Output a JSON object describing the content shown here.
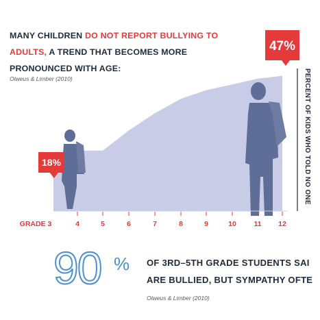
{
  "headline": {
    "part1": "MANY CHILDREN ",
    "highlight": "DO NOT REPORT BULLYING TO ADULTS,",
    "part2": " A TREND THAT BECOMES MORE PRONOUNCED WITH AGE:"
  },
  "citation_top": "Olweus & Limber  (2010)",
  "colors": {
    "red": "#e53a3a",
    "area": "#c9cce6",
    "silhouette": "#5f6e97",
    "navy": "#1f2a3a",
    "blue": "#4a8fd0"
  },
  "chart_data": {
    "type": "area",
    "title": "",
    "xlabel": "",
    "ylabel": "PERCENT OF KIDS WHO TOLD NO ONE",
    "x": [
      "GRADE 3",
      "4",
      "5",
      "6",
      "7",
      "8",
      "9",
      "10",
      "11",
      "12"
    ],
    "values": [
      18,
      21,
      21,
      28,
      34,
      39,
      42,
      44,
      46,
      47
    ],
    "ylim": [
      0,
      50
    ],
    "callouts": [
      {
        "label": "18%",
        "grade": "GRADE 3"
      },
      {
        "label": "47%",
        "grade": "12"
      }
    ],
    "grid": false,
    "legend": "none"
  },
  "stat": {
    "number": "90",
    "percent_sign": "%",
    "line1": "OF 3RD–5TH GRADE STUDENTS SAI",
    "line2": "ARE BULLIED, BUT SYMPATHY OFTE",
    "citation": "Olweus & Limber (2010)"
  }
}
